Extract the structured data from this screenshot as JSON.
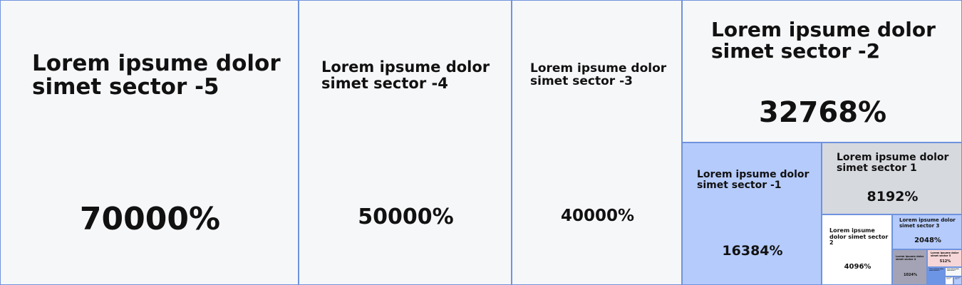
{
  "chart_data": {
    "type": "treemap",
    "tiles": [
      {
        "label": "Lorem ipsume dolor simet sector -5",
        "value": 70000,
        "value_label": "70000%",
        "color": "#f6f7f9"
      },
      {
        "label": "Lorem ipsume dolor simet sector -4",
        "value": 50000,
        "value_label": "50000%",
        "color": "#f6f7f9"
      },
      {
        "label": "Lorem ipsume dolor simet sector -3",
        "value": 40000,
        "value_label": "40000%",
        "color": "#f6f7f9"
      },
      {
        "label": "Lorem ipsume dolor simet sector -2",
        "value": 32768,
        "value_label": "32768%",
        "color": "#f6f7f9"
      },
      {
        "label": "Lorem ipsume dolor simet sector -1",
        "value": 16384,
        "value_label": "16384%",
        "color": "#b5cbfb"
      },
      {
        "label": "Lorem ipsume dolor simet sector 1",
        "value": 8192,
        "value_label": "8192%",
        "color": "#d6d9de"
      },
      {
        "label": "Lorem ipsume dolor simet sector 2",
        "value": 4096,
        "value_label": "4096%",
        "color": "#ffffff"
      },
      {
        "label": "Lorem ipsume dolor simet sector 3",
        "value": 2048,
        "value_label": "2048%",
        "color": "#b5cbfb"
      },
      {
        "label": "Lorem ipsume dolor simet sector 4",
        "value": 1024,
        "value_label": "1024%",
        "color": "#a3a3b5"
      },
      {
        "label": "Lorem ipsume dolor simet sector 5",
        "value": 512,
        "value_label": "512%",
        "color": "#f6d6d8"
      },
      {
        "label": "Lorem ipsume dolor simet sector 6",
        "value": 256,
        "value_label": "",
        "color": "#6d95e6"
      },
      {
        "label": "Lorem ipsume dolor simet sector 7",
        "value": 128,
        "value_label": "",
        "color": "#f6f7f9"
      },
      {
        "label": "Lorem ipsume dolor simet sector 8",
        "value": 64,
        "value_label": "",
        "color": "#ffffff"
      },
      {
        "label": "Lorem ipsume dolor simet sector 9",
        "value": 32,
        "value_label": "",
        "color": "#b5cbfb"
      }
    ],
    "border_color": "#6f93dd"
  }
}
